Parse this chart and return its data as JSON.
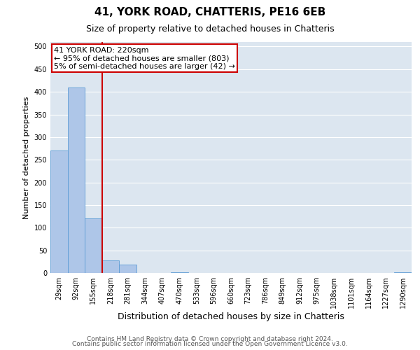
{
  "title1": "41, YORK ROAD, CHATTERIS, PE16 6EB",
  "title2": "Size of property relative to detached houses in Chatteris",
  "xlabel": "Distribution of detached houses by size in Chatteris",
  "ylabel": "Number of detached properties",
  "categories": [
    "29sqm",
    "92sqm",
    "155sqm",
    "218sqm",
    "281sqm",
    "344sqm",
    "407sqm",
    "470sqm",
    "533sqm",
    "596sqm",
    "660sqm",
    "723sqm",
    "786sqm",
    "849sqm",
    "912sqm",
    "975sqm",
    "1038sqm",
    "1101sqm",
    "1164sqm",
    "1227sqm",
    "1290sqm"
  ],
  "values": [
    270,
    410,
    120,
    28,
    18,
    0,
    0,
    1,
    0,
    0,
    0,
    0,
    0,
    0,
    0,
    0,
    0,
    0,
    0,
    0,
    1
  ],
  "bar_color": "#aec6e8",
  "bar_edge_color": "#5b9bd5",
  "marker_line_index": 3,
  "marker_line_color": "#cc0000",
  "annotation_text": "41 YORK ROAD: 220sqm\n← 95% of detached houses are smaller (803)\n5% of semi-detached houses are larger (42) →",
  "annotation_box_color": "#ffffff",
  "annotation_box_edge_color": "#cc0000",
  "ylim": [
    0,
    510
  ],
  "yticks": [
    0,
    50,
    100,
    150,
    200,
    250,
    300,
    350,
    400,
    450,
    500
  ],
  "background_color": "#dce6f0",
  "grid_color": "#ffffff",
  "footer1": "Contains HM Land Registry data © Crown copyright and database right 2024.",
  "footer2": "Contains public sector information licensed under the Open Government Licence v3.0.",
  "title1_fontsize": 11,
  "title2_fontsize": 9,
  "xlabel_fontsize": 9,
  "ylabel_fontsize": 8,
  "tick_fontsize": 7,
  "annotation_fontsize": 8,
  "footer_fontsize": 6.5
}
